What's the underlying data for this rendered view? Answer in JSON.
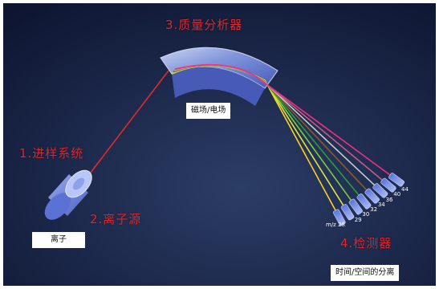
{
  "colors": {
    "background_dark": "#101a33",
    "background_mid": "#2a3a63",
    "label_red": "#e0262c",
    "beam_red": "#e02b2b",
    "component_blue": "#6f86e6"
  },
  "labels": {
    "inlet": "1.进样系统",
    "ion_source": "2.离子源",
    "analyzer": "3.质量分析器",
    "detector": "4.检测器",
    "ion": "离子",
    "field": "磁场/电场",
    "separation": "时间/空间的分离"
  },
  "detector_ticks": {
    "prefix": "m/z",
    "values": [
      "28",
      "29",
      "30",
      "32",
      "34",
      "36",
      "40",
      "44"
    ]
  },
  "beams": [
    {
      "mz": "28",
      "color": "#ffd21f"
    },
    {
      "mz": "29",
      "color": "#dfe63a"
    },
    {
      "mz": "30",
      "color": "#7fcc3a"
    },
    {
      "mz": "32",
      "color": "#2e9a3e"
    },
    {
      "mz": "34",
      "color": "#8a5a2a"
    },
    {
      "mz": "36",
      "color": "#c8c9cc"
    },
    {
      "mz": "40",
      "color": "#c95a86"
    },
    {
      "mz": "44",
      "color": "#f0307a"
    }
  ]
}
